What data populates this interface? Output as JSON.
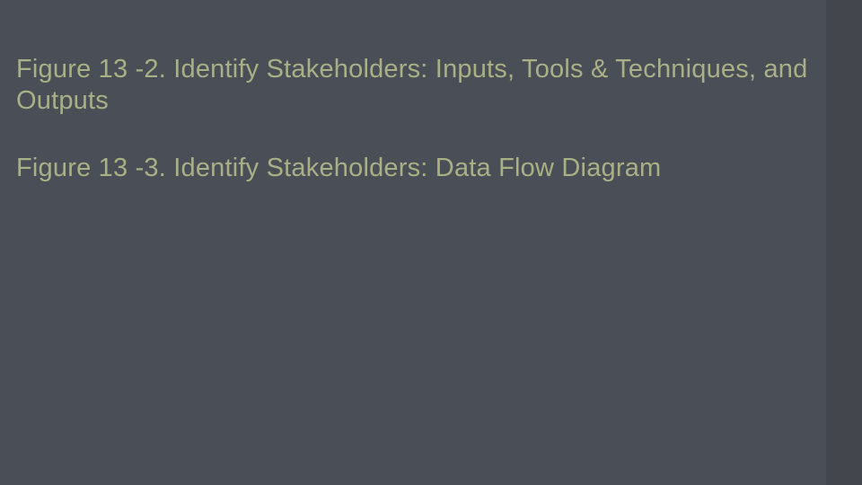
{
  "slide": {
    "background_color": "#4a4e56",
    "accent_color": "#43464d",
    "text_color": "#aab086",
    "font_size_pt": 29,
    "captions": [
      "Figure 13 -2. Identify Stakeholders: Inputs, Tools & Techniques, and Outputs",
      "Figure 13 -3. Identify Stakeholders: Data Flow Diagram"
    ]
  }
}
